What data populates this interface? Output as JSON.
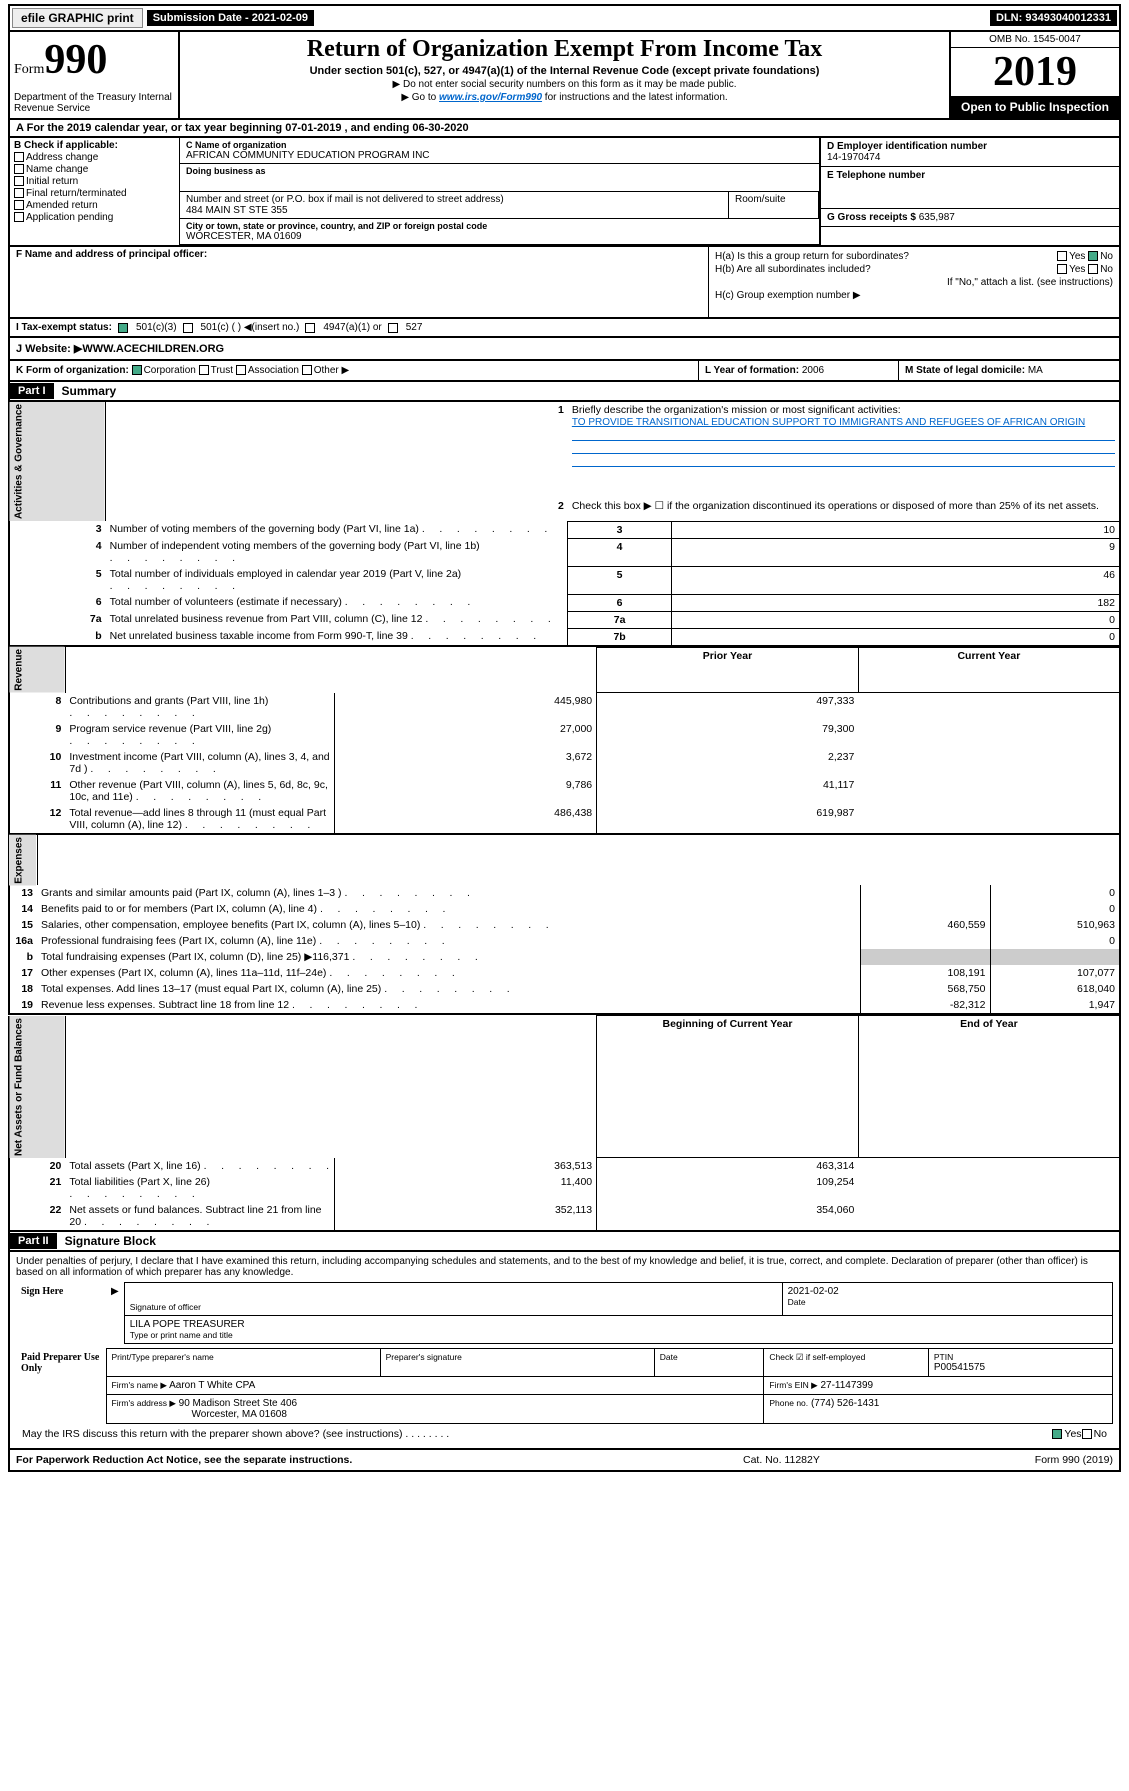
{
  "top": {
    "efile": "efile GRAPHIC print",
    "subdate_lbl": "Submission Date - 2021-02-09",
    "dln": "DLN: 93493040012331"
  },
  "header": {
    "form_prefix": "Form",
    "form_num": "990",
    "dept": "Department of the Treasury Internal Revenue Service",
    "title": "Return of Organization Exempt From Income Tax",
    "sub": "Under section 501(c), 527, or 4947(a)(1) of the Internal Revenue Code (except private foundations)",
    "line1": "▶ Do not enter social security numbers on this form as it may be made public.",
    "line2_pre": "▶ Go to ",
    "line2_link": "www.irs.gov/Form990",
    "line2_post": " for instructions and the latest information.",
    "omb": "OMB No. 1545-0047",
    "year": "2019",
    "inspect": "Open to Public Inspection"
  },
  "taxyear": "For the 2019 calendar year, or tax year beginning 07-01-2019   , and ending 06-30-2020",
  "b": {
    "hdr": "B Check if applicable:",
    "items": [
      "Address change",
      "Name change",
      "Initial return",
      "Final return/terminated",
      "Amended return",
      "Application pending"
    ]
  },
  "c": {
    "name_lbl": "C Name of organization",
    "name": "AFRICAN COMMUNITY EDUCATION PROGRAM INC",
    "dba_lbl": "Doing business as",
    "addr_lbl": "Number and street (or P.O. box if mail is not delivered to street address)",
    "addr": "484 MAIN ST STE 355",
    "room_lbl": "Room/suite",
    "city_lbl": "City or town, state or province, country, and ZIP or foreign postal code",
    "city": "WORCESTER, MA  01609"
  },
  "d": {
    "lbl": "D Employer identification number",
    "val": "14-1970474"
  },
  "e": {
    "lbl": "E Telephone number",
    "val": ""
  },
  "g": {
    "lbl": "G Gross receipts $",
    "val": "635,987"
  },
  "f": {
    "lbl": "F  Name and address of principal officer:"
  },
  "h": {
    "a": "H(a)  Is this a group return for subordinates?",
    "b": "H(b)  Are all subordinates included?",
    "b_note": "If \"No,\" attach a list. (see instructions)",
    "c": "H(c)  Group exemption number ▶",
    "yes": "Yes",
    "no": "No"
  },
  "i": {
    "lbl": "I   Tax-exempt status:",
    "a": "501(c)(3)",
    "b": "501(c) (  ) ◀(insert no.)",
    "c": "4947(a)(1) or",
    "d": "527"
  },
  "j": {
    "lbl": "J   Website: ▶",
    "val": "WWW.ACECHILDREN.ORG"
  },
  "k": {
    "lbl": "K Form of organization:",
    "a": "Corporation",
    "b": "Trust",
    "c": "Association",
    "d": "Other ▶"
  },
  "l": {
    "lbl": "L Year of formation:",
    "val": "2006"
  },
  "m": {
    "lbl": "M State of legal domicile:",
    "val": "MA"
  },
  "part1": {
    "hdr": "Part I",
    "title": "Summary",
    "side_ag": "Activities & Governance",
    "side_rev": "Revenue",
    "side_exp": "Expenses",
    "side_na": "Net Assets or Fund Balances",
    "q1": "Briefly describe the organization's mission or most significant activities:",
    "mission": "TO PROVIDE TRANSITIONAL EDUCATION SUPPORT TO IMMIGRANTS AND REFUGEES OF AFRICAN ORIGIN",
    "q2": "Check this box ▶ ☐  if the organization discontinued its operations or disposed of more than 25% of its net assets.",
    "rows_ag": [
      {
        "n": "3",
        "d": "Number of voting members of the governing body (Part VI, line 1a)",
        "box": "3",
        "v": "10"
      },
      {
        "n": "4",
        "d": "Number of independent voting members of the governing body (Part VI, line 1b)",
        "box": "4",
        "v": "9"
      },
      {
        "n": "5",
        "d": "Total number of individuals employed in calendar year 2019 (Part V, line 2a)",
        "box": "5",
        "v": "46"
      },
      {
        "n": "6",
        "d": "Total number of volunteers (estimate if necessary)",
        "box": "6",
        "v": "182"
      },
      {
        "n": "7a",
        "d": "Total unrelated business revenue from Part VIII, column (C), line 12",
        "box": "7a",
        "v": "0"
      },
      {
        "n": "b",
        "d": "Net unrelated business taxable income from Form 990-T, line 39",
        "box": "7b",
        "v": "0"
      }
    ],
    "prior": "Prior Year",
    "current": "Current Year",
    "rows_rev": [
      {
        "n": "8",
        "d": "Contributions and grants (Part VIII, line 1h)",
        "p": "445,980",
        "c": "497,333"
      },
      {
        "n": "9",
        "d": "Program service revenue (Part VIII, line 2g)",
        "p": "27,000",
        "c": "79,300"
      },
      {
        "n": "10",
        "d": "Investment income (Part VIII, column (A), lines 3, 4, and 7d )",
        "p": "3,672",
        "c": "2,237"
      },
      {
        "n": "11",
        "d": "Other revenue (Part VIII, column (A), lines 5, 6d, 8c, 9c, 10c, and 11e)",
        "p": "9,786",
        "c": "41,117"
      },
      {
        "n": "12",
        "d": "Total revenue—add lines 8 through 11 (must equal Part VIII, column (A), line 12)",
        "p": "486,438",
        "c": "619,987"
      }
    ],
    "rows_exp": [
      {
        "n": "13",
        "d": "Grants and similar amounts paid (Part IX, column (A), lines 1–3 )",
        "p": "",
        "c": "0"
      },
      {
        "n": "14",
        "d": "Benefits paid to or for members (Part IX, column (A), line 4)",
        "p": "",
        "c": "0"
      },
      {
        "n": "15",
        "d": "Salaries, other compensation, employee benefits (Part IX, column (A), lines 5–10)",
        "p": "460,559",
        "c": "510,963"
      },
      {
        "n": "16a",
        "d": "Professional fundraising fees (Part IX, column (A), line 11e)",
        "p": "",
        "c": "0"
      },
      {
        "n": "b",
        "d": "Total fundraising expenses (Part IX, column (D), line 25) ▶116,371",
        "p": "",
        "c": ""
      },
      {
        "n": "17",
        "d": "Other expenses (Part IX, column (A), lines 11a–11d, 11f–24e)",
        "p": "108,191",
        "c": "107,077"
      },
      {
        "n": "18",
        "d": "Total expenses. Add lines 13–17 (must equal Part IX, column (A), line 25)",
        "p": "568,750",
        "c": "618,040"
      },
      {
        "n": "19",
        "d": "Revenue less expenses. Subtract line 18 from line 12",
        "p": "-82,312",
        "c": "1,947"
      }
    ],
    "beg": "Beginning of Current Year",
    "end": "End of Year",
    "rows_na": [
      {
        "n": "20",
        "d": "Total assets (Part X, line 16)",
        "p": "363,513",
        "c": "463,314"
      },
      {
        "n": "21",
        "d": "Total liabilities (Part X, line 26)",
        "p": "11,400",
        "c": "109,254"
      },
      {
        "n": "22",
        "d": "Net assets or fund balances. Subtract line 21 from line 20",
        "p": "352,113",
        "c": "354,060"
      }
    ]
  },
  "part2": {
    "hdr": "Part II",
    "title": "Signature Block",
    "decl": "Under penalties of perjury, I declare that I have examined this return, including accompanying schedules and statements, and to the best of my knowledge and belief, it is true, correct, and complete. Declaration of preparer (other than officer) is based on all information of which preparer has any knowledge.",
    "sign_here": "Sign Here",
    "sig_officer": "Signature of officer",
    "sig_date": "2021-02-02",
    "date_lbl": "Date",
    "name_title": "LILA POPE  TREASURER",
    "name_lbl": "Type or print name and title",
    "paid": "Paid Preparer Use Only",
    "prep_name_lbl": "Print/Type preparer's name",
    "prep_sig_lbl": "Preparer's signature",
    "check_if": "Check ☑ if self-employed",
    "ptin_lbl": "PTIN",
    "ptin": "P00541575",
    "firm_name_lbl": "Firm's name   ▶",
    "firm_name": "Aaron T White CPA",
    "firm_ein_lbl": "Firm's EIN ▶",
    "firm_ein": "27-1147399",
    "firm_addr_lbl": "Firm's address ▶",
    "firm_addr": "90 Madison Street Ste 406",
    "firm_city": "Worcester, MA  01608",
    "phone_lbl": "Phone no.",
    "phone": "(774) 526-1431",
    "discuss": "May the IRS discuss this return with the preparer shown above? (see instructions)",
    "yes": "Yes",
    "no": "No"
  },
  "footer": {
    "left": "For Paperwork Reduction Act Notice, see the separate instructions.",
    "mid": "Cat. No. 11282Y",
    "right": "Form 990 (2019)"
  }
}
